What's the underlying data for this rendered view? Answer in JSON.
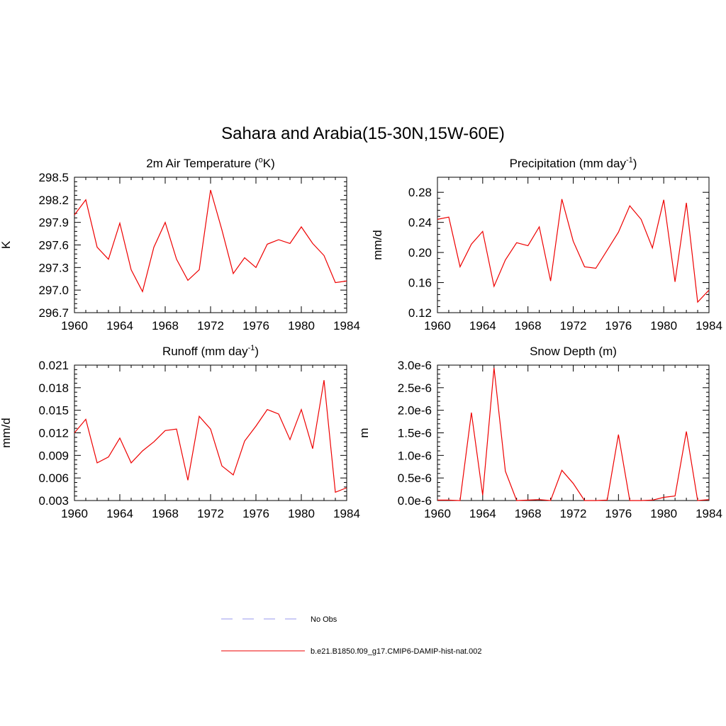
{
  "figure": {
    "title": "Sahara and Arabia(15-30N,15W-60E)"
  },
  "legend": {
    "entries": [
      {
        "label": "No Obs",
        "style": "dashed",
        "color": "#9999ee"
      },
      {
        "label": "b.e21.B1850.f09_g17.CMIP6-DAMIP-hist-nat.002",
        "style": "solid",
        "color": "#ee0000"
      }
    ]
  },
  "chart_data": [
    {
      "type": "line",
      "title": "2m Air Temperature (oK)",
      "title_parts": {
        "pre": "2m Air Temperature (",
        "sup": "o",
        "post": "K)"
      },
      "ylabel": "K",
      "x": [
        1960,
        1961,
        1962,
        1963,
        1964,
        1965,
        1966,
        1967,
        1968,
        1969,
        1970,
        1971,
        1972,
        1973,
        1974,
        1975,
        1976,
        1977,
        1978,
        1979,
        1980,
        1981,
        1982,
        1983,
        1984
      ],
      "xlim": [
        1960,
        1984
      ],
      "xticks": [
        1960,
        1964,
        1968,
        1972,
        1976,
        1980,
        1984
      ],
      "ylim": [
        296.7,
        298.5
      ],
      "yticks": [
        296.7,
        297.0,
        297.3,
        297.6,
        297.9,
        298.2,
        298.5
      ],
      "ytick_labels": [
        "296.7",
        "297.0",
        "297.3",
        "297.6",
        "297.9",
        "298.2",
        "298.5"
      ],
      "series": [
        {
          "color": "#ee0000",
          "values": [
            298.0,
            298.2,
            297.57,
            297.41,
            297.89,
            297.27,
            296.98,
            297.57,
            297.9,
            297.41,
            297.13,
            297.27,
            298.33,
            297.8,
            297.22,
            297.43,
            297.3,
            297.61,
            297.67,
            297.62,
            297.84,
            297.62,
            297.46,
            297.1,
            297.12
          ]
        }
      ]
    },
    {
      "type": "line",
      "title": "Precipitation (mm day-1)",
      "title_parts": {
        "pre": "Precipitation (mm day",
        "sup": "-1",
        "post": ")"
      },
      "ylabel": "mm/d",
      "x": [
        1960,
        1961,
        1962,
        1963,
        1964,
        1965,
        1966,
        1967,
        1968,
        1969,
        1970,
        1971,
        1972,
        1973,
        1974,
        1975,
        1976,
        1977,
        1978,
        1979,
        1980,
        1981,
        1982,
        1983,
        1984
      ],
      "xlim": [
        1960,
        1984
      ],
      "xticks": [
        1960,
        1964,
        1968,
        1972,
        1976,
        1980,
        1984
      ],
      "ylim": [
        0.12,
        0.3
      ],
      "yticks": [
        0.12,
        0.16,
        0.2,
        0.24,
        0.28
      ],
      "ytick_labels": [
        "0.12",
        "0.16",
        "0.20",
        "0.24",
        "0.28"
      ],
      "series": [
        {
          "color": "#ee0000",
          "values": [
            0.244,
            0.247,
            0.181,
            0.211,
            0.228,
            0.155,
            0.19,
            0.213,
            0.209,
            0.234,
            0.162,
            0.271,
            0.215,
            0.181,
            0.179,
            0.203,
            0.227,
            0.262,
            0.244,
            0.206,
            0.27,
            0.161,
            0.266,
            0.134,
            0.15
          ]
        }
      ]
    },
    {
      "type": "line",
      "title": "Runoff (mm day-1)",
      "title_parts": {
        "pre": "Runoff (mm day",
        "sup": "-1",
        "post": ")"
      },
      "ylabel": "mm/d",
      "x": [
        1960,
        1961,
        1962,
        1963,
        1964,
        1965,
        1966,
        1967,
        1968,
        1969,
        1970,
        1971,
        1972,
        1973,
        1974,
        1975,
        1976,
        1977,
        1978,
        1979,
        1980,
        1981,
        1982,
        1983,
        1984
      ],
      "xlim": [
        1960,
        1984
      ],
      "xticks": [
        1960,
        1964,
        1968,
        1972,
        1976,
        1980,
        1984
      ],
      "ylim": [
        0.003,
        0.021
      ],
      "yticks": [
        0.003,
        0.006,
        0.009,
        0.012,
        0.015,
        0.018,
        0.021
      ],
      "ytick_labels": [
        "0.003",
        "0.006",
        "0.009",
        "0.012",
        "0.015",
        "0.018",
        "0.021"
      ],
      "series": [
        {
          "color": "#ee0000",
          "values": [
            0.012,
            0.0138,
            0.008,
            0.0088,
            0.0113,
            0.008,
            0.0096,
            0.0108,
            0.0123,
            0.0125,
            0.0057,
            0.0142,
            0.0125,
            0.0076,
            0.0064,
            0.0109,
            0.0129,
            0.0151,
            0.0145,
            0.0111,
            0.0151,
            0.0099,
            0.019,
            0.0041,
            0.0047
          ]
        }
      ]
    },
    {
      "type": "line",
      "title": "Snow Depth (m)",
      "title_parts": {
        "pre": "Snow Depth (m)",
        "sup": "",
        "post": ""
      },
      "ylabel": "m",
      "x": [
        1960,
        1961,
        1962,
        1963,
        1964,
        1965,
        1966,
        1967,
        1968,
        1969,
        1970,
        1971,
        1972,
        1973,
        1974,
        1975,
        1976,
        1977,
        1978,
        1979,
        1980,
        1981,
        1982,
        1983,
        1984
      ],
      "xlim": [
        1960,
        1984
      ],
      "xticks": [
        1960,
        1964,
        1968,
        1972,
        1976,
        1980,
        1984
      ],
      "ylim": [
        0,
        3e-06
      ],
      "yticks": [
        0,
        5e-07,
        1e-06,
        1.5e-06,
        2e-06,
        2.5e-06,
        3e-06
      ],
      "ytick_labels": [
        "0.0e-6",
        "0.5e-6",
        "1.0e-6",
        "1.5e-6",
        "2.0e-6",
        "2.5e-6",
        "3.0e-6"
      ],
      "series": [
        {
          "color": "#ee0000",
          "values": [
            1e-08,
            1e-08,
            0.0,
            1.95e-06,
            1.2e-07,
            2.94e-06,
            6.5e-07,
            0.0,
            1e-08,
            2e-08,
            0.0,
            6.7e-07,
            3.8e-07,
            0.0,
            0.0,
            1e-08,
            1.46e-06,
            0.0,
            0.0,
            1e-08,
            7e-08,
            1e-07,
            1.53e-06,
            0.0,
            2e-08
          ]
        }
      ]
    }
  ]
}
